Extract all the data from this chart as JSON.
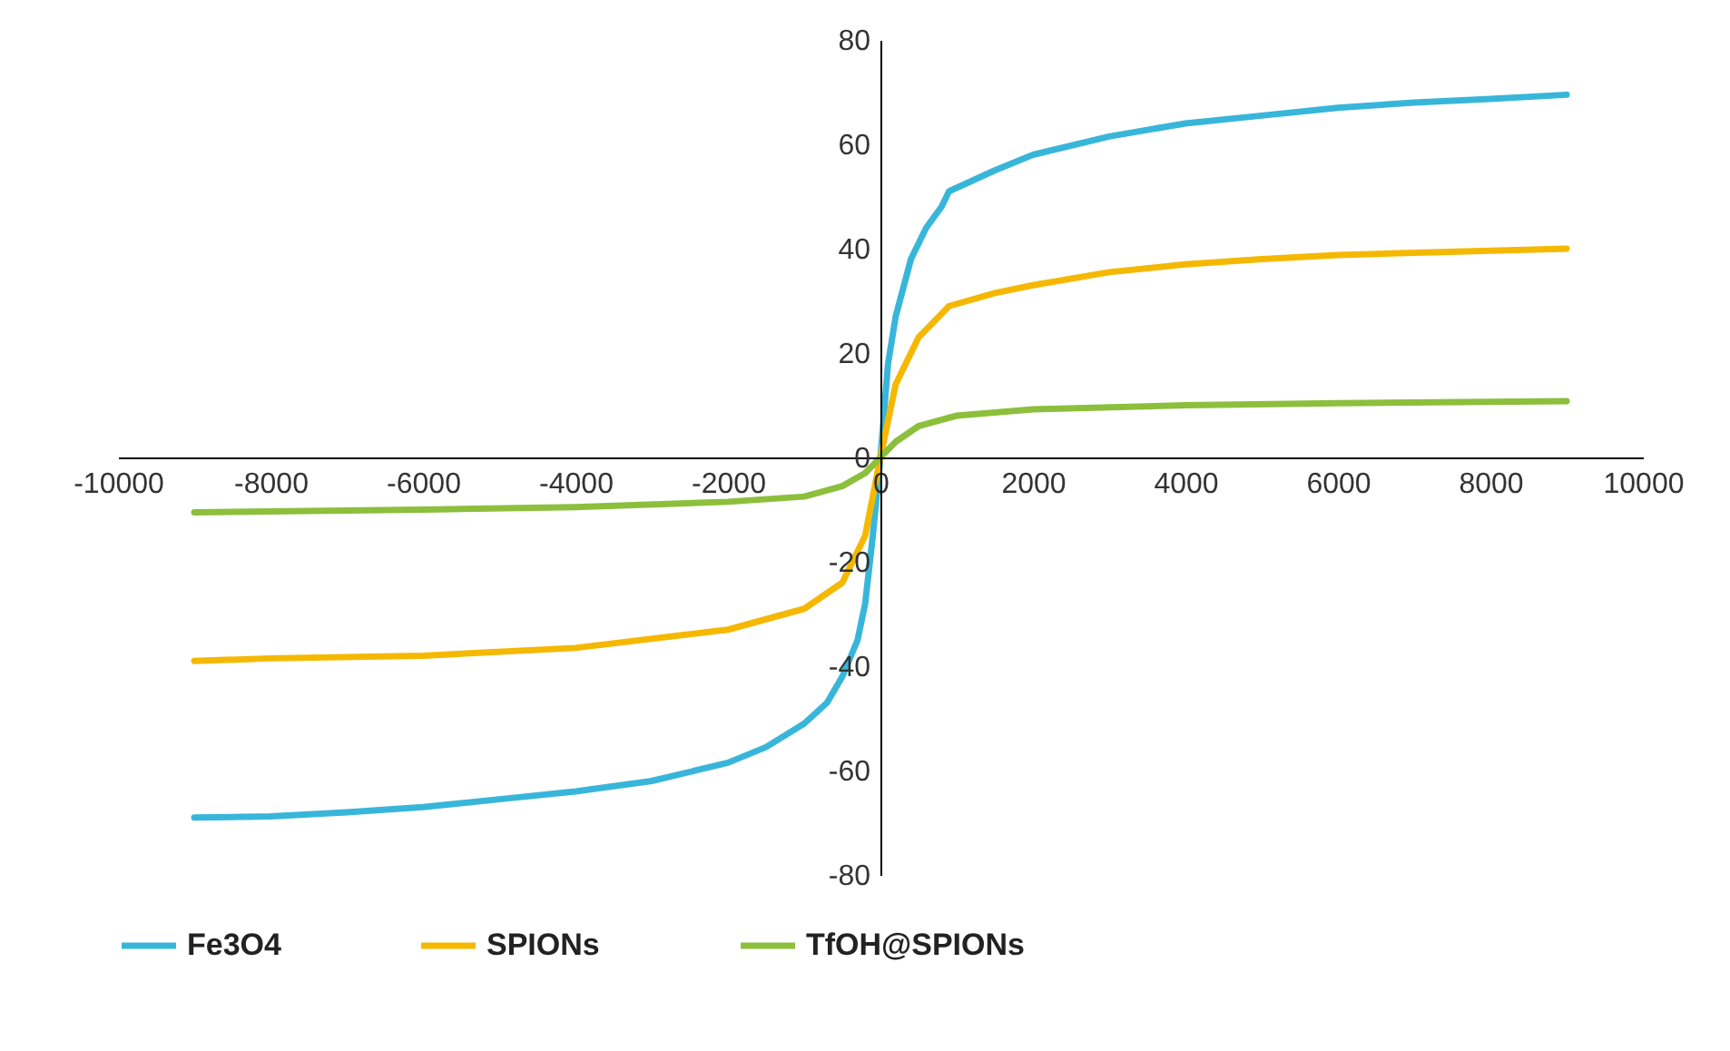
{
  "chart_data": {
    "type": "line",
    "xlim": [
      -10000,
      10000
    ],
    "ylim": [
      -80,
      80
    ],
    "xticks": [
      -10000,
      -8000,
      -6000,
      -4000,
      -2000,
      0,
      2000,
      4000,
      6000,
      8000,
      10000
    ],
    "yticks": [
      -80,
      -60,
      -40,
      -20,
      0,
      20,
      40,
      60,
      80
    ],
    "grid": false,
    "legend": "bottom",
    "marker": "none",
    "line_style": "solid",
    "series": [
      {
        "name": "Fe3O4",
        "color": "#38b6da",
        "x": [
          -9000,
          -8000,
          -7000,
          -6000,
          -5000,
          -4000,
          -3000,
          -2000,
          -1500,
          -1000,
          -700,
          -500,
          -300,
          -200,
          -100,
          0,
          100,
          200,
          400,
          600,
          800,
          900,
          1500,
          2000,
          3000,
          4000,
          5000,
          6000,
          7000,
          8000,
          9000
        ],
        "values": [
          -69,
          -68.8,
          -68,
          -67,
          -65.5,
          -64,
          -62,
          -58.5,
          -55.5,
          -51,
          -47,
          -42,
          -35,
          -28,
          -15,
          0,
          18,
          27,
          38,
          44,
          48,
          51,
          55,
          58,
          61.5,
          64,
          65.5,
          67,
          68,
          68.7,
          69.5
        ]
      },
      {
        "name": "SPIONs",
        "color": "#f5b800",
        "x": [
          -9000,
          -8000,
          -6000,
          -4000,
          -2000,
          -1000,
          -500,
          -200,
          0,
          200,
          500,
          900,
          1500,
          2000,
          3000,
          4000,
          5000,
          6000,
          7000,
          8000,
          9000
        ],
        "values": [
          -39,
          -38.5,
          -38,
          -36.5,
          -33,
          -29,
          -24,
          -15,
          0,
          14,
          23,
          29,
          31.5,
          33,
          35.5,
          37,
          38,
          38.8,
          39.2,
          39.6,
          40
        ]
      },
      {
        "name": "TfOH@SPIONs",
        "color": "#8cbf3c",
        "x": [
          -9000,
          -6000,
          -4000,
          -2000,
          -1000,
          -500,
          -200,
          0,
          200,
          500,
          1000,
          2000,
          4000,
          6000,
          9000
        ],
        "values": [
          -10.5,
          -10,
          -9.5,
          -8.5,
          -7.5,
          -5.5,
          -3,
          0,
          3,
          6,
          8,
          9.2,
          10,
          10.4,
          10.8
        ]
      }
    ]
  }
}
